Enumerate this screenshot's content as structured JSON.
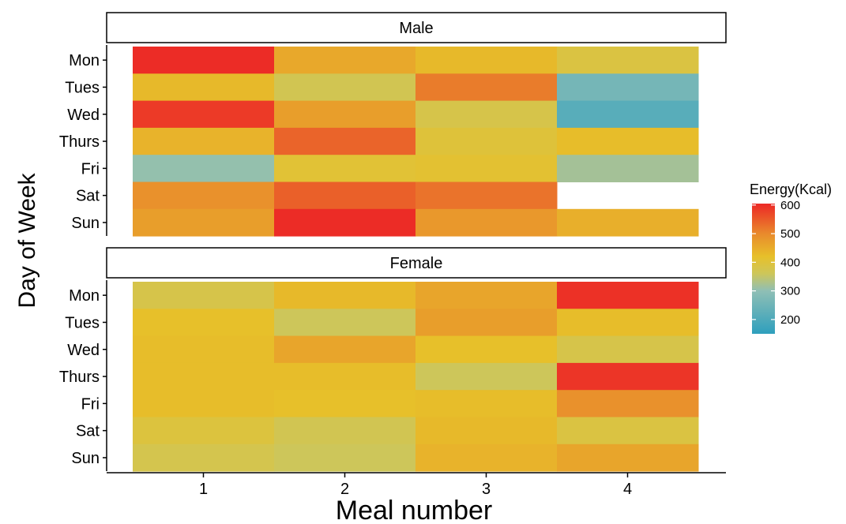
{
  "chart_data": {
    "type": "heatmap",
    "xlabel": "Meal number",
    "ylabel": "Day of Week",
    "x_categories": [
      "1",
      "2",
      "3",
      "4"
    ],
    "y_categories": [
      "Mon",
      "Tues",
      "Wed",
      "Thurs",
      "Fri",
      "Sat",
      "Sun"
    ],
    "legend": {
      "title": "Energy(Kcal)",
      "ticks": [
        200,
        300,
        400,
        500,
        600
      ],
      "range": [
        150,
        605
      ],
      "colors": {
        "150": "#2E9FBD",
        "300": "#8FBFB5",
        "360": "#CDC65A",
        "420": "#E7C02A",
        "500": "#E98A2C",
        "600": "#EC2C26"
      }
    },
    "facets": [
      {
        "label": "Male",
        "values": [
          [
            600,
            455,
            430,
            390
          ],
          [
            430,
            370,
            515,
            260
          ],
          [
            585,
            470,
            380,
            215
          ],
          [
            440,
            540,
            400,
            425
          ],
          [
            305,
            405,
            410,
            320
          ],
          [
            490,
            545,
            525,
            null
          ],
          [
            470,
            600,
            480,
            445
          ]
        ]
      },
      {
        "label": "Female",
        "values": [
          [
            380,
            430,
            460,
            595
          ],
          [
            420,
            360,
            470,
            425
          ],
          [
            425,
            460,
            420,
            380
          ],
          [
            425,
            425,
            360,
            590
          ],
          [
            425,
            420,
            425,
            490
          ],
          [
            395,
            370,
            430,
            390
          ],
          [
            375,
            360,
            440,
            460
          ]
        ]
      }
    ]
  }
}
